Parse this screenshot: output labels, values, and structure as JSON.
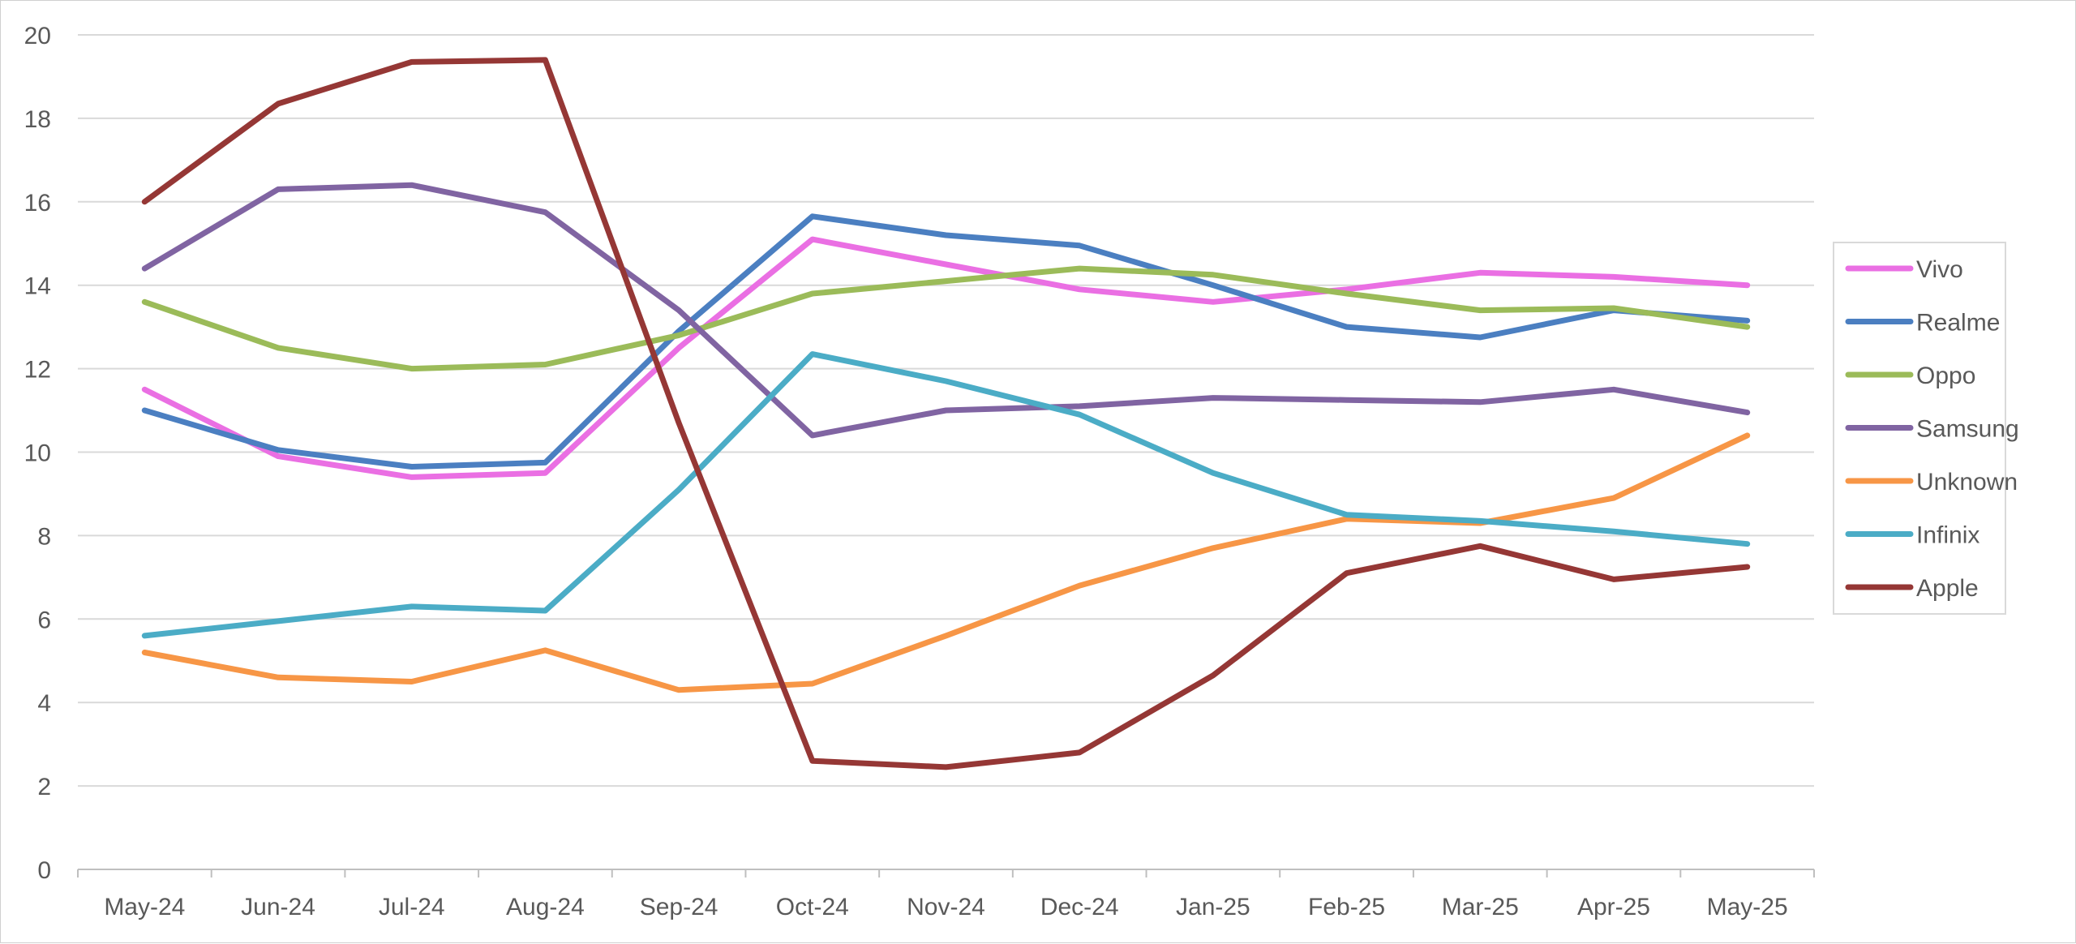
{
  "chart_data": {
    "type": "line",
    "title": "",
    "xlabel": "",
    "ylabel": "",
    "categories": [
      "May-24",
      "Jun-24",
      "Jul-24",
      "Aug-24",
      "Sep-24",
      "Oct-24",
      "Nov-24",
      "Dec-24",
      "Jan-25",
      "Feb-25",
      "Mar-25",
      "Apr-25",
      "May-25"
    ],
    "ylim": [
      0,
      20
    ],
    "yticks": [
      0,
      2,
      4,
      6,
      8,
      10,
      12,
      14,
      16,
      18,
      20
    ],
    "grid": true,
    "legend_position": "right",
    "series": [
      {
        "name": "Vivo",
        "color": "#EA6FE3",
        "values": [
          11.5,
          9.9,
          9.4,
          9.5,
          12.5,
          15.1,
          14.5,
          13.9,
          13.6,
          13.9,
          14.3,
          14.2,
          14.0
        ]
      },
      {
        "name": "Realme",
        "color": "#4B7FC1",
        "values": [
          11.0,
          10.05,
          9.65,
          9.75,
          12.9,
          15.65,
          15.2,
          14.95,
          14.0,
          13.0,
          12.75,
          13.4,
          13.15
        ]
      },
      {
        "name": "Oppo",
        "color": "#9BBB59",
        "values": [
          13.6,
          12.5,
          12.0,
          12.1,
          12.8,
          13.8,
          14.1,
          14.4,
          14.25,
          13.8,
          13.4,
          13.45,
          13.0
        ]
      },
      {
        "name": "Samsung",
        "color": "#8064A2",
        "values": [
          14.4,
          16.3,
          16.4,
          15.75,
          13.4,
          10.4,
          11.0,
          11.1,
          11.3,
          11.25,
          11.2,
          11.5,
          10.95
        ]
      },
      {
        "name": "Unknown",
        "color": "#F79646",
        "values": [
          5.2,
          4.6,
          4.5,
          5.25,
          4.3,
          4.45,
          5.6,
          6.8,
          7.7,
          8.4,
          8.3,
          8.9,
          10.4
        ]
      },
      {
        "name": "Infinix",
        "color": "#4BACC6",
        "values": [
          5.6,
          5.95,
          6.3,
          6.2,
          9.1,
          12.35,
          11.7,
          10.9,
          9.5,
          8.5,
          8.35,
          8.1,
          7.8
        ]
      },
      {
        "name": "Apple",
        "color": "#953735",
        "values": [
          16.0,
          18.35,
          19.35,
          19.4,
          10.7,
          2.6,
          2.45,
          2.8,
          4.65,
          7.1,
          7.75,
          6.95,
          7.25
        ]
      }
    ]
  }
}
